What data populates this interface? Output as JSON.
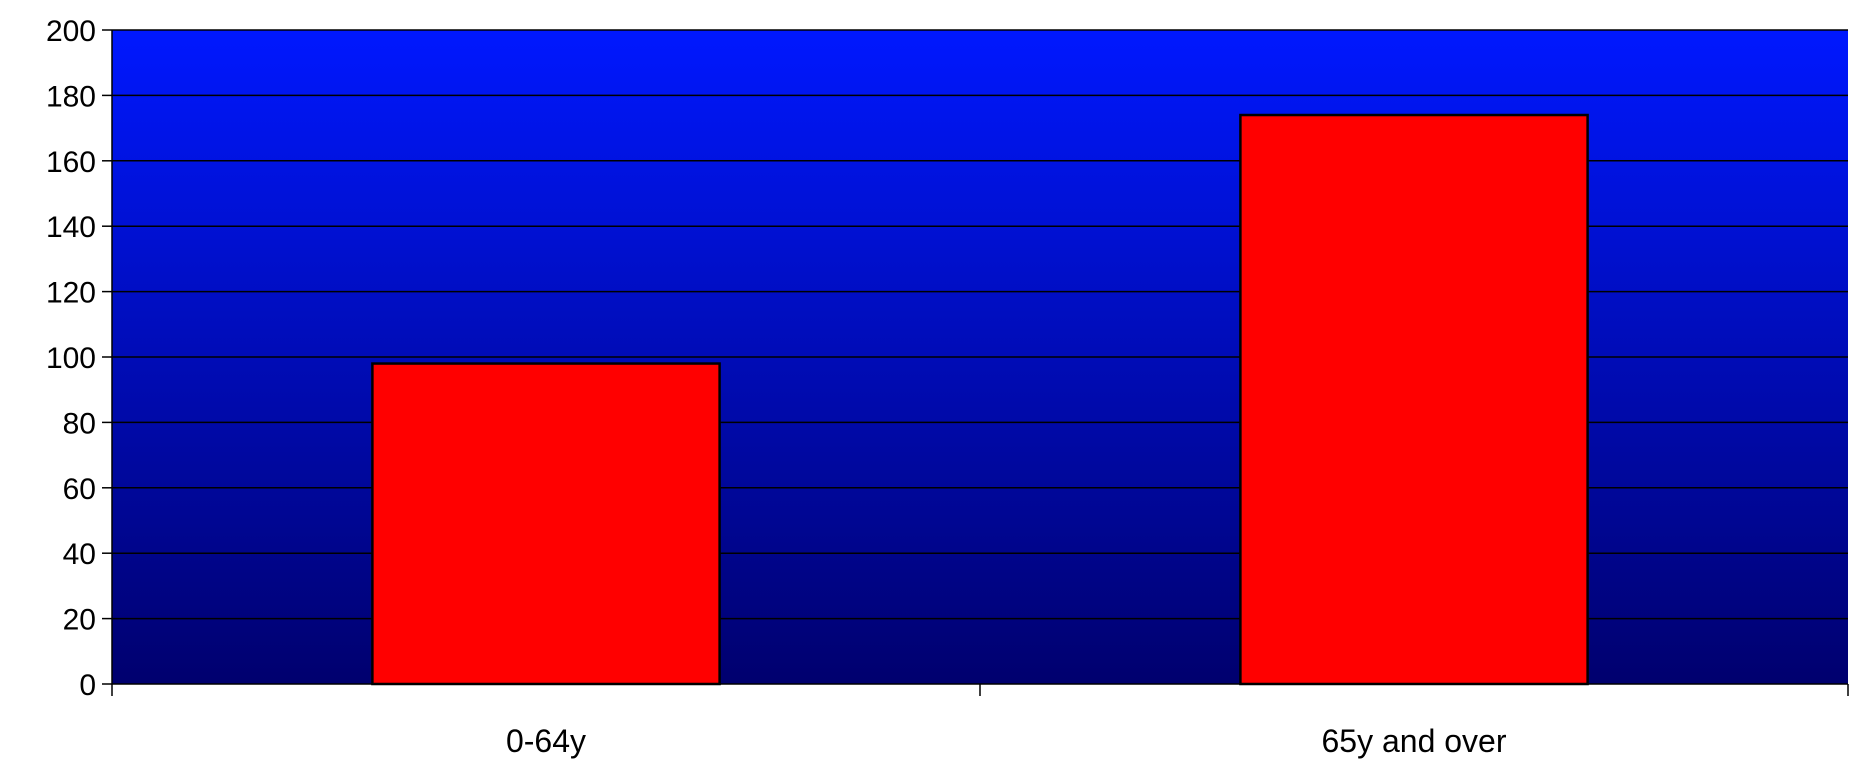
{
  "chart_data": {
    "type": "bar",
    "categories": [
      "0-64y",
      "65y and over"
    ],
    "values": [
      98,
      174
    ],
    "ylim": [
      0,
      200
    ],
    "yticks": [
      0,
      20,
      40,
      60,
      80,
      100,
      120,
      140,
      160,
      180,
      200
    ],
    "grid": true,
    "legend": "none",
    "title": "",
    "xlabel": "",
    "ylabel": ""
  },
  "colors": {
    "bar_fill": "#ff0000",
    "bar_stroke": "#000000",
    "plot_bg_top": "#0018ff",
    "plot_bg_bottom": "#00006e",
    "gridline": "#000000"
  }
}
